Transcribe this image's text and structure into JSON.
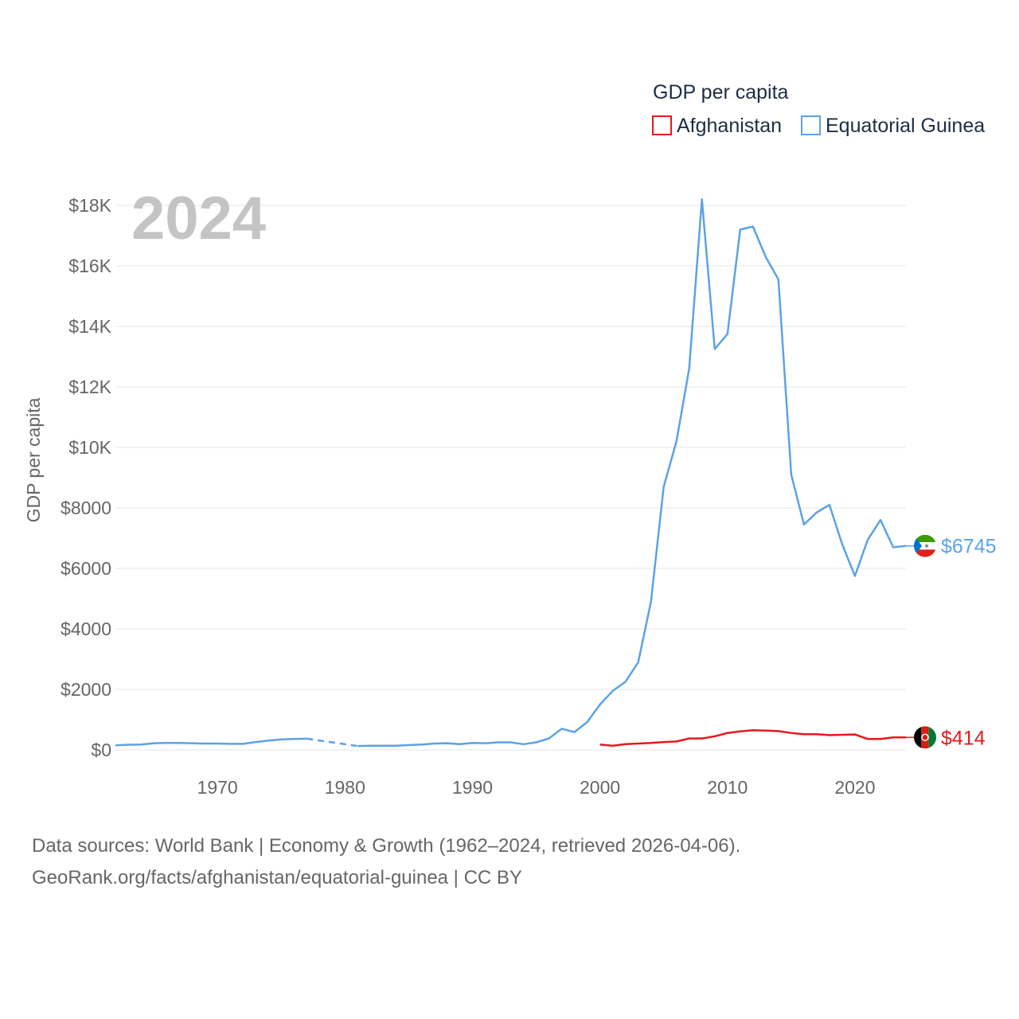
{
  "chart_data": {
    "type": "line",
    "title": "GDP per capita",
    "ylabel": "GDP per capita",
    "xlabel": "",
    "ylim": [
      0,
      18000
    ],
    "xlim": [
      1962,
      2024
    ],
    "year_label": "2024",
    "x_ticks": [
      "1970",
      "1980",
      "1990",
      "2000",
      "2010",
      "2020"
    ],
    "y_ticks": [
      {
        "value": 0,
        "label": "$0"
      },
      {
        "value": 2000,
        "label": "$2000"
      },
      {
        "value": 4000,
        "label": "$4000"
      },
      {
        "value": 6000,
        "label": "$6000"
      },
      {
        "value": 8000,
        "label": "$8000"
      },
      {
        "value": 10000,
        "label": "$10K"
      },
      {
        "value": 12000,
        "label": "$12K"
      },
      {
        "value": 14000,
        "label": "$14K"
      },
      {
        "value": 16000,
        "label": "$16K"
      },
      {
        "value": 18000,
        "label": "$18K"
      }
    ],
    "series": [
      {
        "name": "Afghanistan",
        "color": "#e31a1c",
        "end_label": "$414",
        "x": [
          2000,
          2001,
          2002,
          2003,
          2004,
          2005,
          2006,
          2007,
          2008,
          2009,
          2010,
          2011,
          2012,
          2013,
          2014,
          2015,
          2016,
          2017,
          2018,
          2019,
          2020,
          2021,
          2022,
          2023,
          2024
        ],
        "values": [
          180,
          140,
          190,
          210,
          230,
          260,
          280,
          380,
          380,
          450,
          560,
          610,
          650,
          640,
          620,
          560,
          520,
          520,
          490,
          500,
          510,
          360,
          360,
          414,
          414
        ]
      },
      {
        "name": "Equatorial Guinea",
        "color": "#5ba3e6",
        "end_label": "$6745",
        "segments": [
          {
            "style": "solid",
            "x": [
              1962,
              1963,
              1964,
              1965,
              1966,
              1967,
              1968,
              1969,
              1970,
              1971,
              1972,
              1973,
              1974,
              1975,
              1976,
              1977
            ],
            "values": [
              150,
              170,
              180,
              220,
              230,
              230,
              220,
              210,
              210,
              200,
              200,
              260,
              310,
              350,
              360,
              370
            ]
          },
          {
            "style": "dashed",
            "x": [
              1977,
              1981
            ],
            "values": [
              370,
              130
            ]
          },
          {
            "style": "solid",
            "x": [
              1981,
              1982,
              1983,
              1984,
              1985,
              1986,
              1987,
              1988,
              1989,
              1990,
              1991,
              1992,
              1993,
              1994,
              1995,
              1996,
              1997,
              1998,
              1999,
              2000,
              2001,
              2002,
              2003,
              2004,
              2005,
              2006,
              2007,
              2008,
              2009,
              2010,
              2011,
              2012,
              2013,
              2014,
              2015,
              2016,
              2017,
              2018,
              2019,
              2020,
              2021,
              2022,
              2023,
              2024
            ],
            "values": [
              130,
              140,
              140,
              140,
              160,
              180,
              210,
              220,
              190,
              230,
              220,
              250,
              250,
              190,
              250,
              380,
              700,
              590,
              920,
              1500,
              1950,
              2250,
              2900,
              4900,
              8700,
              10200,
              12600,
              18200,
              13250,
              13750,
              17200,
              17300,
              16300,
              15550,
              9100,
              7450,
              7850,
              8100,
              6800,
              5750,
              6950,
              7600,
              6700,
              6745
            ]
          }
        ]
      }
    ]
  },
  "legend": {
    "title": "GDP per capita",
    "items": [
      "Afghanistan",
      "Equatorial Guinea"
    ]
  },
  "source": {
    "line1": "Data sources: World Bank | Economy & Growth (1962–2024, retrieved 2026-04-06).",
    "line2": "GeoRank.org/facts/afghanistan/equatorial-guinea | CC BY"
  }
}
